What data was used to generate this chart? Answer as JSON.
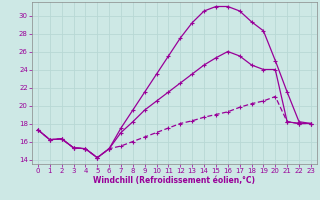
{
  "background_color": "#cde8e5",
  "grid_color": "#b8d8d5",
  "line_color": "#990099",
  "xlabel": "Windchill (Refroidissement éolien,°C)",
  "xlim": [
    -0.5,
    23.5
  ],
  "ylim": [
    13.5,
    31.5
  ],
  "xticks": [
    0,
    1,
    2,
    3,
    4,
    5,
    6,
    7,
    8,
    9,
    10,
    11,
    12,
    13,
    14,
    15,
    16,
    17,
    18,
    19,
    20,
    21,
    22,
    23
  ],
  "yticks": [
    14,
    16,
    18,
    20,
    22,
    24,
    26,
    28,
    30
  ],
  "line_big_x": [
    0,
    1,
    2,
    3,
    4,
    5,
    6,
    7,
    8,
    9,
    10,
    11,
    12,
    13,
    14,
    15,
    16,
    17,
    18,
    19,
    20,
    21,
    22,
    23
  ],
  "line_big_y": [
    17.3,
    16.2,
    16.3,
    15.3,
    15.2,
    14.2,
    15.2,
    17.5,
    19.5,
    21.5,
    23.5,
    25.5,
    27.5,
    29.2,
    30.5,
    31.0,
    31.0,
    30.5,
    29.3,
    28.3,
    25.0,
    21.5,
    18.2,
    18.0
  ],
  "line_mid_x": [
    0,
    1,
    2,
    3,
    4,
    5,
    6,
    7,
    8,
    9,
    10,
    11,
    12,
    13,
    14,
    15,
    16,
    17,
    18,
    19,
    20,
    21,
    22,
    23
  ],
  "line_mid_y": [
    17.3,
    16.2,
    16.3,
    15.3,
    15.2,
    14.2,
    15.2,
    17.0,
    18.2,
    19.5,
    20.5,
    21.5,
    22.5,
    23.5,
    24.5,
    25.3,
    26.0,
    25.5,
    24.5,
    24.0,
    24.0,
    18.2,
    18.0,
    18.0
  ],
  "line_flat_x": [
    0,
    1,
    2,
    3,
    4,
    5,
    6,
    7,
    8,
    9,
    10,
    11,
    12,
    13,
    14,
    15,
    16,
    17,
    18,
    19,
    20,
    21,
    22,
    23
  ],
  "line_flat_y": [
    17.3,
    16.2,
    16.3,
    15.3,
    15.2,
    14.2,
    15.2,
    15.5,
    16.0,
    16.5,
    17.0,
    17.5,
    18.0,
    18.3,
    18.7,
    19.0,
    19.3,
    19.8,
    20.2,
    20.5,
    21.0,
    18.2,
    18.0,
    18.0
  ]
}
